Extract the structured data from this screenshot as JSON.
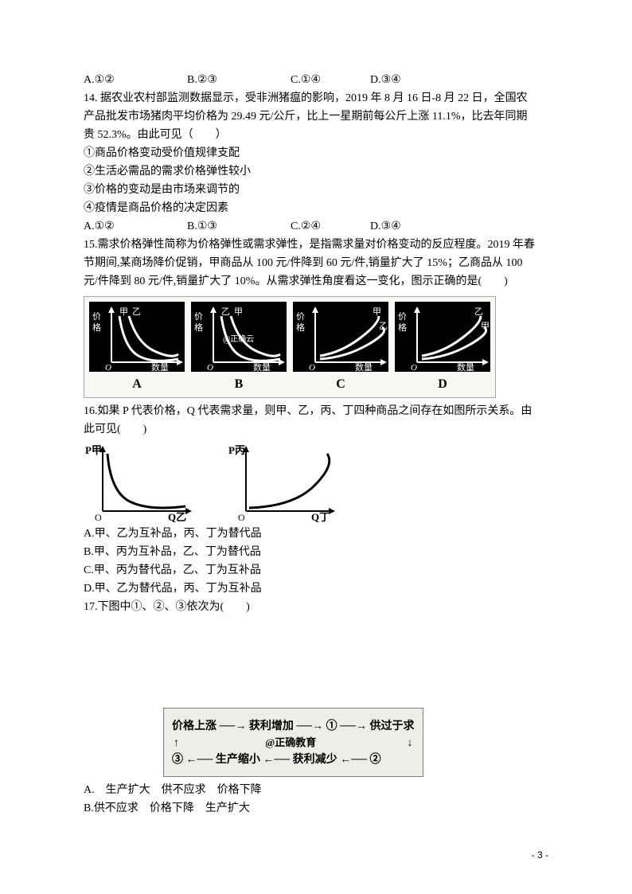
{
  "q13": {
    "opts": {
      "a": "A.①②",
      "b": "B.②③",
      "c": "C.①④",
      "d": "D.③④"
    }
  },
  "q14": {
    "stem_l1": "14. 据农业农村部监测数据显示，受非洲猪瘟的影响，2019 年 8 月 16 日-8 月 22 日，全国农",
    "stem_l2": "产品批发市场猪肉平均价格为 29.49 元/公斤，比上一星期前每公斤上涨 11.1%，比去年同期",
    "stem_l3": "贵 52.3%。由此可见（　　）",
    "p1": "①商品价格变动受价值规律支配",
    "p2": "②生活必需品的需求价格弹性较小",
    "p3": "③价格的变动是由市场来调节的",
    "p4": "④疫情是商品价格的决定因素",
    "opts": {
      "a": "A.①②",
      "b": "B.①③",
      "c": "C.②④",
      "d": "D.③④"
    }
  },
  "q15": {
    "stem_l1": "15.需求价格弹性简称为价格弹性或需求弹性，是指需求量对价格变动的反应程度。2019 年春",
    "stem_l2": "节期间,某商场降价促销，甲商品从 100 元/件降到 60 元/件,销量扩大了 15%；乙商品从 100",
    "stem_l3": "元/件降到 80 元/件,销量扩大了 10%。从需求弹性角度看这一变化，图示正确的是(　　)",
    "chart": {
      "background_color": "#f7f7f4",
      "border_color": "#a9a7a0",
      "panel_bg": "#000000",
      "stroke": "#ffffff",
      "y_label": "价格",
      "x_label": "数量",
      "brand": "@正确云",
      "panels": [
        {
          "label": "A",
          "left": "甲",
          "right": "乙",
          "type": "down"
        },
        {
          "label": "B",
          "left": "乙",
          "right": "甲",
          "type": "down"
        },
        {
          "label": "C",
          "left": "甲",
          "right": "乙",
          "type": "up"
        },
        {
          "label": "D",
          "left": "乙",
          "right": "甲",
          "type": "up"
        }
      ]
    }
  },
  "q16": {
    "stem_l1": "16.如果 P 代表价格，Q 代表需求量，则甲、乙，丙、丁四种商品之间存在如图所示关系。由",
    "stem_l2": "此可见(　　)",
    "chart": {
      "stroke": "#000000",
      "left": {
        "xlabel": "Q乙",
        "ylabel": "P甲",
        "type": "down"
      },
      "right": {
        "xlabel": "Q丁",
        "ylabel": "P丙",
        "type": "up"
      }
    },
    "a": "A.甲、乙为互补品，丙、丁为替代品",
    "b": "B.甲、丙为互补品，乙、丁为替代品",
    "c": "C.甲、丙为替代品，乙、丁为互补品",
    "d": "D.甲、乙为替代品，丙、丁为互补品"
  },
  "q17": {
    "stem": "17.下图中①、②、③依次为(　　)",
    "flow": {
      "bg": "#eeeee8",
      "border": "#7d7d7d",
      "line1": "价格上涨 ──→ 获利增加 ──→ ① ──→ 供过于求",
      "brand": "@正确教育",
      "line2": "③ ←── 生产缩小 ←── 获利减少 ←── ②"
    },
    "a": "A.　生产扩大　供不应求　价格下降",
    "b": "B.供不应求　价格下降　生产扩大"
  },
  "page_number": "- 3 -"
}
